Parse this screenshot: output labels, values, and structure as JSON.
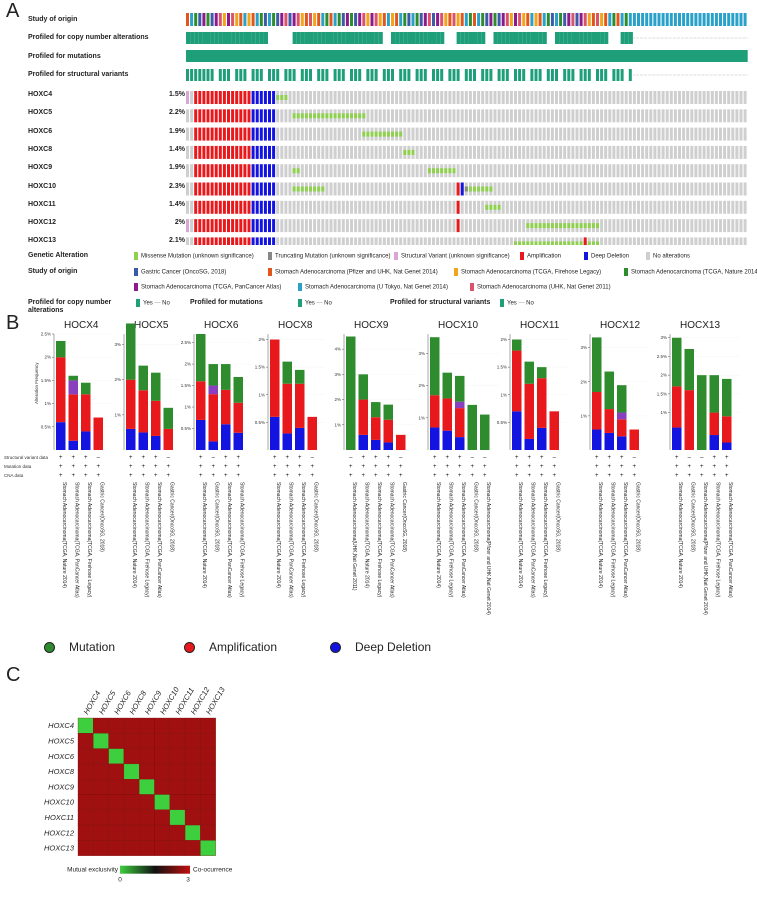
{
  "panels": {
    "a": "A",
    "b": "B",
    "c": "C"
  },
  "oncoprint": {
    "track_labels": {
      "study": "Study of origin",
      "cna": "Profiled for copy number alterations",
      "mut": "Profiled for mutations",
      "sv": "Profiled for structural variants"
    },
    "genes": [
      {
        "name": "HOXC4",
        "pct": "1.5%"
      },
      {
        "name": "HOXC5",
        "pct": "2.2%"
      },
      {
        "name": "HOXC6",
        "pct": "1.9%"
      },
      {
        "name": "HOXC8",
        "pct": "1.4%"
      },
      {
        "name": "HOXC9",
        "pct": "1.9%"
      },
      {
        "name": "HOXC10",
        "pct": "2.3%"
      },
      {
        "name": "HOXC11",
        "pct": "1.4%"
      },
      {
        "name": "HOXC12",
        "pct": "2%"
      },
      {
        "name": "HOXC13",
        "pct": "2.1%"
      }
    ],
    "legend": {
      "genetic_alteration_label": "Genetic Alteration",
      "alterations": [
        {
          "label": "Missense Mutation (unknown significance)",
          "color": "#8fd14f"
        },
        {
          "label": "Truncating Mutation (unknown significance)",
          "color": "#888888"
        },
        {
          "label": "Structural Variant (unknown significance)",
          "color": "#d8a7d8"
        },
        {
          "label": "Amplification",
          "color": "#e8191c"
        },
        {
          "label": "Deep Deletion",
          "color": "#1414e0"
        },
        {
          "label": "No alterations",
          "color": "#cfcfcf"
        }
      ],
      "study_label": "Study of origin",
      "studies_row1": [
        {
          "label": "Gastric Cancer (OncoSG, 2018)",
          "color": "#3d5aa8"
        },
        {
          "label": "Stomach Adenocarcinoma (Pfizer and UHK, Nat Genet 2014)",
          "color": "#e0561b"
        },
        {
          "label": "Stomach Adenocarcinoma (TCGA, Firehose Legacy)",
          "color": "#f2a51a"
        },
        {
          "label": "Stomach Adenocarcinoma (TCGA, Nature 2014)",
          "color": "#2e8b2e"
        }
      ],
      "studies_row2": [
        {
          "label": "Stomach Adenocarcinoma (TCGA, PanCancer Atlas)",
          "color": "#8b1a8b"
        },
        {
          "label": "Stomach Adenocarcinoma (U Tokyo, Nat Genet 2014)",
          "color": "#2aa1c8"
        },
        {
          "label": "Stomach Adenocarcinoma (UHK, Nat Genet 2011)",
          "color": "#d9536b"
        }
      ],
      "profiled_cna_label": "Profiled for copy number alterations",
      "profiled_mut_label": "Profiled for mutations",
      "profiled_sv_label": "Profiled for structural variants",
      "yes": "Yes",
      "no": "No"
    }
  },
  "chart_data": [
    {
      "type": "bar",
      "title": "HOCX4",
      "ylabel": "Alteration Frequency",
      "yticks": [
        "0.5%",
        "1%",
        "1.5%",
        "2%",
        "2.5%"
      ],
      "ymax": 2.5,
      "categories": [
        "Stomach Adenocarcinoma(TCGA, Nature 2014)",
        "Stomach Adenocarcinoma(TCGA, PanCancer Atlas)",
        "Stomach Adenocarcinoma(TCGA, Firehose Legacy)",
        "Gastric Cancer(OncoSG, 2018)"
      ],
      "series": [
        {
          "name": "Deep Deletion",
          "values": [
            0.6,
            0.2,
            0.4,
            0.0
          ]
        },
        {
          "name": "Amplification",
          "values": [
            1.4,
            1.0,
            0.8,
            0.7
          ]
        },
        {
          "name": "Structural variant",
          "values": [
            0.0,
            0.3,
            0.0,
            0.0
          ]
        },
        {
          "name": "Mutation",
          "values": [
            0.35,
            0.1,
            0.25,
            0.0
          ]
        }
      ]
    },
    {
      "type": "bar",
      "title": "HOCX5",
      "yticks": [
        "1%",
        "2%",
        "3%"
      ],
      "ymax": 3.3,
      "categories": [
        "Stomach Adenocarcinoma(TCGA, Nature 2014)",
        "Stomach Adenocarcinoma(TCGA, Firehose Legacy)",
        "Stomach Adenocarcinoma(TCGA, PanCancer Atlas)",
        "Gastric Cancer(OncoSG, 2018)"
      ],
      "series": [
        {
          "name": "Deep Deletion",
          "values": [
            0.6,
            0.5,
            0.4,
            0.0
          ]
        },
        {
          "name": "Amplification",
          "values": [
            1.4,
            1.2,
            1.0,
            0.6
          ]
        },
        {
          "name": "Structural variant",
          "values": [
            0.0,
            0.0,
            0.0,
            0.0
          ]
        },
        {
          "name": "Mutation",
          "values": [
            1.6,
            0.7,
            0.8,
            0.6
          ]
        }
      ]
    },
    {
      "type": "bar",
      "title": "HOCX6",
      "yticks": [
        "0.5%",
        "1%",
        "1.5%",
        "2%",
        "2.5%"
      ],
      "ymax": 2.7,
      "categories": [
        "Stomach Adenocarcinoma(TCGA, Nature 2014)",
        "Gastric Cancer(OncoSG, 2018)",
        "Stomach Adenocarcinoma(TCGA, PanCancer Atlas)",
        "Stomach Adenocarcinoma(TCGA, Firehose Legacy)"
      ],
      "series": [
        {
          "name": "Deep Deletion",
          "values": [
            0.7,
            0.2,
            0.6,
            0.4
          ]
        },
        {
          "name": "Amplification",
          "values": [
            0.9,
            1.1,
            0.8,
            0.7
          ]
        },
        {
          "name": "Structural variant",
          "values": [
            0.0,
            0.2,
            0.0,
            0.0
          ]
        },
        {
          "name": "Mutation",
          "values": [
            1.1,
            0.5,
            0.6,
            0.6
          ]
        }
      ]
    },
    {
      "type": "bar",
      "title": "HOCX8",
      "yticks": [
        "0.5%",
        "1%",
        "1.5%",
        "2%"
      ],
      "ymax": 2.1,
      "categories": [
        "Stomach Adenocarcinoma(TCGA, Nature 2014)",
        "Stomach Adenocarcinoma(TCGA, PanCancer Atlas)",
        "Stomach Adenocarcinoma(TCGA, Firehose Legacy)",
        "Gastric Cancer(OncoSG, 2018)"
      ],
      "series": [
        {
          "name": "Deep Deletion",
          "values": [
            0.6,
            0.3,
            0.4,
            0.0
          ]
        },
        {
          "name": "Amplification",
          "values": [
            1.4,
            0.9,
            0.8,
            0.6
          ]
        },
        {
          "name": "Structural variant",
          "values": [
            0.0,
            0.0,
            0.0,
            0.0
          ]
        },
        {
          "name": "Mutation",
          "values": [
            0.0,
            0.4,
            0.25,
            0.0
          ]
        }
      ]
    },
    {
      "type": "bar",
      "title": "HOCX9",
      "yticks": [
        "1%",
        "2%",
        "3%",
        "4%"
      ],
      "ymax": 4.6,
      "categories": [
        "Stomach Adenocarcinoma(UHK,Nat Genet 2011)",
        "Stomach Adenocarcinoma(TCGA, Nature 2014)",
        "Stomach Adenocarcinoma(TCGA, Firehose Legacy)",
        "Stomach Adenocarcinoma(TCGA, PanCancer Atlas)",
        "Gastric Cancer(OncoSG, 2018)"
      ],
      "series": [
        {
          "name": "Deep Deletion",
          "values": [
            0.0,
            0.6,
            0.4,
            0.3,
            0.0
          ]
        },
        {
          "name": "Amplification",
          "values": [
            0.0,
            1.4,
            0.9,
            0.9,
            0.6
          ]
        },
        {
          "name": "Structural variant",
          "values": [
            0.0,
            0.0,
            0.0,
            0.0,
            0.0
          ]
        },
        {
          "name": "Mutation",
          "values": [
            4.5,
            1.0,
            0.6,
            0.6,
            0.0
          ]
        }
      ]
    },
    {
      "type": "bar",
      "title": "HOCX10",
      "yticks": [
        "1%",
        "2%",
        "3%"
      ],
      "ymax": 3.6,
      "categories": [
        "Stomach Adenocarcinoma(TCGA, Nature 2014)",
        "Stomach Adenocarcinoma(TCGA, Firehose Legacy)",
        "Stomach Adenocarcinoma(TCGA, PanCancer Atlas)",
        "Gastric Cancer(OncoSG, 2018)",
        "Stomach Adenocarcinoma(Pfizer and UHK,Nat Genet 2014)"
      ],
      "series": [
        {
          "name": "Deep Deletion",
          "values": [
            0.7,
            0.6,
            0.4,
            0.0,
            0.0
          ]
        },
        {
          "name": "Amplification",
          "values": [
            1.0,
            1.0,
            0.9,
            0.0,
            0.0
          ]
        },
        {
          "name": "Structural variant",
          "values": [
            0.0,
            0.0,
            0.2,
            0.0,
            0.0
          ]
        },
        {
          "name": "Mutation",
          "values": [
            1.8,
            0.8,
            0.8,
            1.4,
            1.1
          ]
        }
      ]
    },
    {
      "type": "bar",
      "title": "HOCX11",
      "yticks": [
        "0.5%",
        "1%",
        "1.5%",
        "2%"
      ],
      "ymax": 2.1,
      "categories": [
        "Stomach Adenocarcinoma(TCGA, Nature 2014)",
        "Stomach Adenocarcinoma(TCGA, PanCancer Atlas)",
        "Stomach Adenocarcinoma(TCGA, Firehose Legacy)",
        "Gastric Cancer(OncoSG, 2018)"
      ],
      "series": [
        {
          "name": "Deep Deletion",
          "values": [
            0.7,
            0.2,
            0.4,
            0.0
          ]
        },
        {
          "name": "Amplification",
          "values": [
            1.1,
            1.0,
            0.9,
            0.7
          ]
        },
        {
          "name": "Structural variant",
          "values": [
            0.0,
            0.0,
            0.0,
            0.0
          ]
        },
        {
          "name": "Mutation",
          "values": [
            0.2,
            0.4,
            0.2,
            0.0
          ]
        }
      ]
    },
    {
      "type": "bar",
      "title": "HOCX12",
      "yticks": [
        "1%",
        "2%",
        "3%"
      ],
      "ymax": 3.4,
      "categories": [
        "Stomach Adenocarcinoma(TCGA, Nature 2014)",
        "Stomach Adenocarcinoma(TCGA, Firehose Legacy)",
        "Stomach Adenocarcinoma(TCGA, PanCancer Atlas)",
        "Gastric Cancer(OncoSG, 2018)"
      ],
      "series": [
        {
          "name": "Deep Deletion",
          "values": [
            0.6,
            0.5,
            0.4,
            0.0
          ]
        },
        {
          "name": "Amplification",
          "values": [
            1.1,
            0.7,
            0.5,
            0.6
          ]
        },
        {
          "name": "Structural variant",
          "values": [
            0.0,
            0.0,
            0.2,
            0.0
          ]
        },
        {
          "name": "Mutation",
          "values": [
            1.6,
            1.1,
            0.8,
            0.0
          ]
        }
      ]
    },
    {
      "type": "bar",
      "title": "HOCX13",
      "yticks": [
        "1%",
        "1.5%",
        "2%",
        "2.5%",
        "3%"
      ],
      "ymax": 3.1,
      "categories": [
        "Stomach Adenocarcinoma(TCGA, Nature 2014)",
        "Gastric Cancer(OncoSG, 2018)",
        "Stomach Adenocarcinoma(Pfizer and UHK,Nat Genet 2014)",
        "Stomach Adenocarcinoma(TCGA, Firehose Legacy)",
        "Stomach Adenocarcinoma(TCGA, PanCancer Atlas)"
      ],
      "series": [
        {
          "name": "Deep Deletion",
          "values": [
            0.6,
            0.0,
            0.0,
            0.4,
            0.2
          ]
        },
        {
          "name": "Amplification",
          "values": [
            1.1,
            1.6,
            0.0,
            0.6,
            0.7
          ]
        },
        {
          "name": "Structural variant",
          "values": [
            0.0,
            0.0,
            0.0,
            0.0,
            0.0
          ]
        },
        {
          "name": "Mutation",
          "values": [
            1.3,
            1.1,
            2.0,
            1.0,
            1.0
          ]
        }
      ]
    }
  ],
  "profile_rows": {
    "labels": [
      "Structural variant data",
      "Mutation data",
      "CNA data"
    ]
  },
  "bar_legend": [
    {
      "label": "Mutation",
      "color": "#2e8b2e"
    },
    {
      "label": "Amplification",
      "color": "#e8191c"
    },
    {
      "label": "Deep Deletion",
      "color": "#1414e0"
    }
  ],
  "heatmap": {
    "genes": [
      "HOXC4",
      "HOXC5",
      "HOXC6",
      "HOXC8",
      "HOXC9",
      "HOXC10",
      "HOXC11",
      "HOXC12",
      "HOXC13"
    ],
    "scale_left": "Mutual exclusivity",
    "scale_right": "Co-ocurrence",
    "scale_min": "0",
    "scale_max": "3",
    "off_color": "#a01010",
    "diag_color": "#3ecf3e"
  }
}
